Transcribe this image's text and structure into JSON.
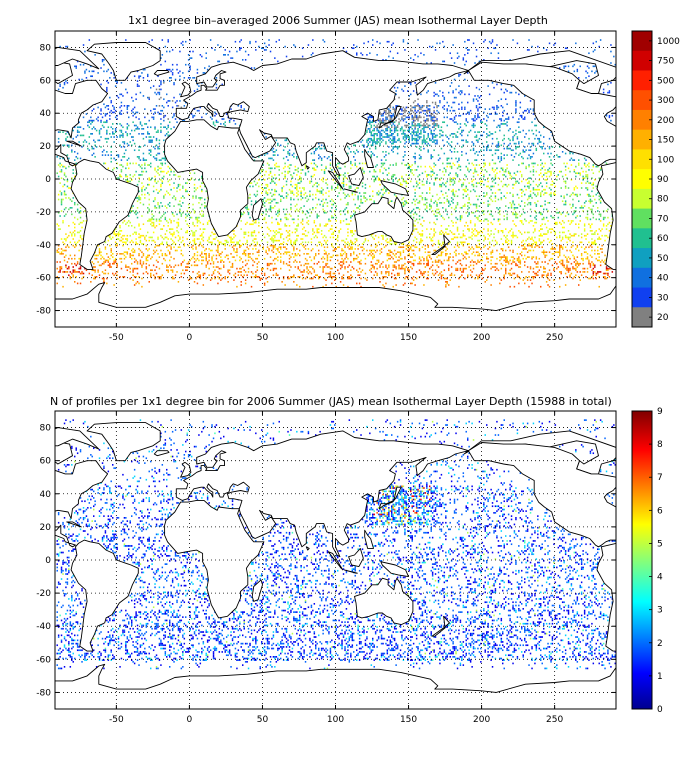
{
  "colors": {
    "land": "#ffffff",
    "ocean": "#ffffff",
    "grid": "#000000",
    "coast": "#000000",
    "nodata_gray": "#808080"
  },
  "panels": [
    {
      "title": "1x1 degree bin–averaged 2006 Summer (JAS) mean Isothermal Layer Depth",
      "x_ticks": [
        "-50",
        "0",
        "50",
        "100",
        "150",
        "200",
        "250"
      ],
      "y_ticks": [
        "80",
        "60",
        "40",
        "20",
        "0",
        "-20",
        "-40",
        "-60",
        "-80"
      ],
      "colorbar": {
        "labels": [
          "1000",
          "750",
          "500",
          "300",
          "200",
          "150",
          "100",
          "90",
          "80",
          "70",
          "60",
          "50",
          "40",
          "30",
          "20"
        ],
        "colors": [
          "#a00000",
          "#d00000",
          "#ff2000",
          "#ff5000",
          "#ff8000",
          "#ffb000",
          "#ffe000",
          "#ffff00",
          "#c8ff30",
          "#60e060",
          "#20c090",
          "#10a0c0",
          "#1070e0",
          "#1040f0",
          "#808080"
        ]
      }
    },
    {
      "title": "N of profiles per 1x1 degree bin for 2006 Summer (JAS) mean Isothermal Layer Depth  (15988 in total)",
      "x_ticks": [
        "-50",
        "0",
        "50",
        "100",
        "150",
        "200",
        "250"
      ],
      "y_ticks": [
        "80",
        "60",
        "40",
        "20",
        "0",
        "-20",
        "-40",
        "-60",
        "-80"
      ],
      "colorbar": {
        "labels": [
          "9",
          "8",
          "7",
          "6",
          "5",
          "4",
          "3",
          "2",
          "1",
          "0"
        ],
        "range": [
          0,
          9
        ]
      }
    }
  ],
  "map_data": {
    "x_range": [
      -92,
      292
    ],
    "y_range": [
      -90,
      90
    ],
    "grid": true,
    "projection": "equirectangular (lon/lat)"
  }
}
